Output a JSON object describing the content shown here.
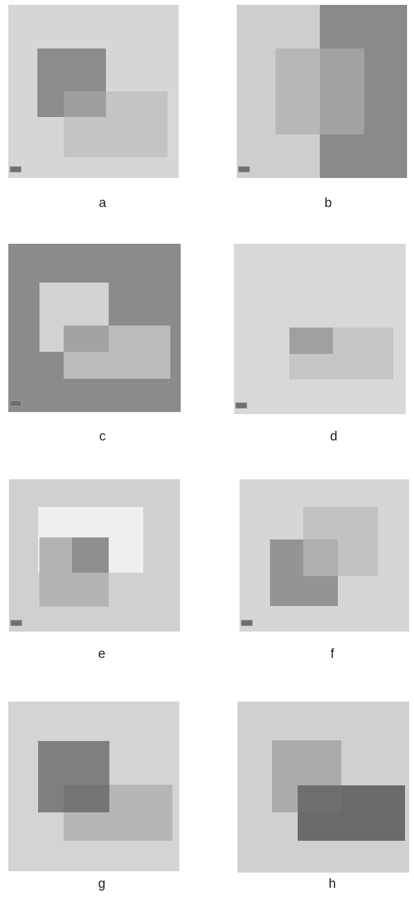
{
  "figure": {
    "panels": [
      {
        "id": "a",
        "label": "a",
        "background": "#d6d6d6",
        "background_right": "",
        "square_1": "#8c8c8c",
        "square_2": "#c4c4c4",
        "overlap": "#9e9e9e"
      },
      {
        "id": "b",
        "label": "b",
        "background": "#cecece",
        "background_right": "#8a8a8a",
        "square_1": "#b7b7b7",
        "square_2": "",
        "overlap": "#a2a2a2"
      },
      {
        "id": "c",
        "label": "c",
        "background": "#8b8b8b",
        "background_right": "",
        "square_1": "#d2d2d2",
        "square_2": "#bcbcbc",
        "overlap": "#a3a3a3"
      },
      {
        "id": "d",
        "label": "d",
        "background": "#d8d8d8",
        "background_right": "",
        "square_1": "#c6c6c6",
        "square_2": "",
        "overlap": "#a0a0a0"
      },
      {
        "id": "e",
        "label": "e",
        "background": "#d0d0d0",
        "background_right": "",
        "square_1": "#efefef",
        "square_2": "#b4b4b4",
        "overlap": "#8f8f8f"
      },
      {
        "id": "f",
        "label": "f",
        "background": "#d6d6d6",
        "background_right": "",
        "square_1": "#c2c2c2",
        "square_2": "#949494",
        "overlap": "#aeaeae"
      },
      {
        "id": "g",
        "label": "g",
        "background": "#d4d4d4",
        "background_right": "",
        "square_1": "#7f7f7f",
        "square_2": "#b6b6b6",
        "overlap": "#757575"
      },
      {
        "id": "h",
        "label": "h",
        "background": "#d0d0d0",
        "background_right": "",
        "square_1": "#ababab",
        "square_2": "#6a6a6a",
        "overlap": "#6e6e6e"
      }
    ]
  }
}
